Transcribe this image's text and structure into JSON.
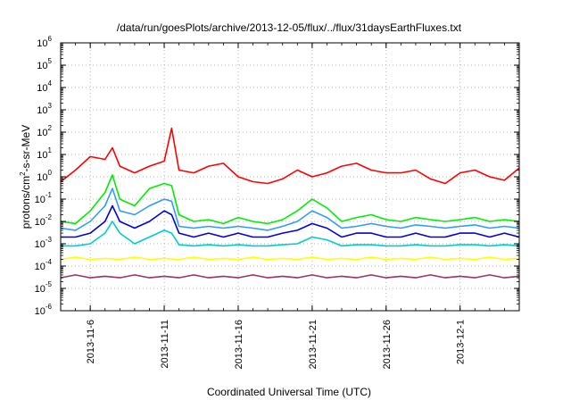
{
  "chart_data": {
    "type": "line",
    "title": "/data/run/goesPlots/archive/2013-12-05/flux/../flux/31daysEarthFluxes.txt",
    "xlabel": "Coordinated Universal Time (UTC)",
    "ylabel": {
      "base": "protons/cm",
      "sup": "2",
      "rest": "-s-sr-MeV"
    },
    "x_start": "2013-11-04",
    "x_end": "2013-12-05",
    "x_ticks": [
      "2013-11-6",
      "2013-11-11",
      "2013-11-16",
      "2013-11-21",
      "2013-11-26",
      "2013-12-1"
    ],
    "y_scale": "log",
    "ylim": [
      1e-06,
      1000000.0
    ],
    "y_ticks": [
      {
        "base": "10",
        "exp": "-6"
      },
      {
        "base": "10",
        "exp": "-5"
      },
      {
        "base": "10",
        "exp": "-4"
      },
      {
        "base": "10",
        "exp": "-3"
      },
      {
        "base": "10",
        "exp": "-2"
      },
      {
        "base": "10",
        "exp": "-1"
      },
      {
        "base": "10",
        "exp": "0"
      },
      {
        "base": "10",
        "exp": "1"
      },
      {
        "base": "10",
        "exp": "2"
      },
      {
        "base": "10",
        "exp": "3"
      },
      {
        "base": "10",
        "exp": "4"
      },
      {
        "base": "10",
        "exp": "5"
      },
      {
        "base": "10",
        "exp": "6"
      }
    ],
    "grid": true,
    "series": [
      {
        "color": "#ff0000",
        "x": [
          "2013-11-04",
          "2013-11-05",
          "2013-11-06",
          "2013-11-07",
          "2013-11-07T12:00",
          "2013-11-08",
          "2013-11-09",
          "2013-11-10",
          "2013-11-11",
          "2013-11-11T12:00",
          "2013-11-12",
          "2013-11-13",
          "2013-11-14",
          "2013-11-15",
          "2013-11-16",
          "2013-11-17",
          "2013-11-18",
          "2013-11-19",
          "2013-11-20",
          "2013-11-21",
          "2013-11-22",
          "2013-11-23",
          "2013-11-24",
          "2013-11-25",
          "2013-11-26",
          "2013-11-27",
          "2013-11-28",
          "2013-11-29",
          "2013-11-30",
          "2013-12-01",
          "2013-12-02",
          "2013-12-03",
          "2013-12-04",
          "2013-12-05"
        ],
        "y": [
          0.6,
          2,
          8,
          6,
          20,
          3,
          1.5,
          3,
          5,
          150,
          2,
          1.5,
          3,
          4,
          1,
          0.6,
          0.5,
          0.8,
          2,
          1,
          1.5,
          3,
          4,
          2,
          1.5,
          1.5,
          2,
          0.8,
          0.5,
          1.5,
          2,
          1,
          0.7,
          2.5
        ]
      },
      {
        "color": "#00ee00",
        "x": [
          "2013-11-04",
          "2013-11-05",
          "2013-11-06",
          "2013-11-07",
          "2013-11-07T12:00",
          "2013-11-08",
          "2013-11-09",
          "2013-11-10",
          "2013-11-11",
          "2013-11-11T12:00",
          "2013-11-12",
          "2013-11-13",
          "2013-11-14",
          "2013-11-15",
          "2013-11-16",
          "2013-11-17",
          "2013-11-18",
          "2013-11-19",
          "2013-11-20",
          "2013-11-21",
          "2013-11-22",
          "2013-11-23",
          "2013-11-24",
          "2013-11-25",
          "2013-11-26",
          "2013-11-27",
          "2013-11-28",
          "2013-11-29",
          "2013-11-30",
          "2013-12-01",
          "2013-12-02",
          "2013-12-03",
          "2013-12-04",
          "2013-12-05"
        ],
        "y": [
          0.01,
          0.008,
          0.03,
          0.2,
          1.2,
          0.1,
          0.05,
          0.3,
          0.5,
          0.4,
          0.02,
          0.01,
          0.012,
          0.008,
          0.015,
          0.01,
          0.008,
          0.012,
          0.03,
          0.1,
          0.04,
          0.01,
          0.015,
          0.02,
          0.012,
          0.01,
          0.015,
          0.012,
          0.01,
          0.012,
          0.015,
          0.01,
          0.012,
          0.01
        ]
      },
      {
        "color": "#3399ff",
        "x": [
          "2013-11-04",
          "2013-11-05",
          "2013-11-06",
          "2013-11-07",
          "2013-11-07T12:00",
          "2013-11-08",
          "2013-11-09",
          "2013-11-10",
          "2013-11-11",
          "2013-11-11T12:00",
          "2013-11-12",
          "2013-11-13",
          "2013-11-14",
          "2013-11-15",
          "2013-11-16",
          "2013-11-17",
          "2013-11-18",
          "2013-11-19",
          "2013-11-20",
          "2013-11-21",
          "2013-11-22",
          "2013-11-23",
          "2013-11-24",
          "2013-11-25",
          "2013-11-26",
          "2013-11-27",
          "2013-11-28",
          "2013-11-29",
          "2013-11-30",
          "2013-12-01",
          "2013-12-02",
          "2013-12-03",
          "2013-12-04",
          "2013-12-05"
        ],
        "y": [
          0.005,
          0.004,
          0.01,
          0.05,
          0.3,
          0.03,
          0.02,
          0.05,
          0.1,
          0.08,
          0.006,
          0.005,
          0.006,
          0.005,
          0.006,
          0.005,
          0.004,
          0.006,
          0.01,
          0.03,
          0.015,
          0.005,
          0.006,
          0.008,
          0.006,
          0.005,
          0.007,
          0.006,
          0.005,
          0.006,
          0.007,
          0.005,
          0.006,
          0.005
        ]
      },
      {
        "color": "#0000dd",
        "x": [
          "2013-11-04",
          "2013-11-05",
          "2013-11-06",
          "2013-11-07",
          "2013-11-07T12:00",
          "2013-11-08",
          "2013-11-09",
          "2013-11-10",
          "2013-11-11",
          "2013-11-11T12:00",
          "2013-11-12",
          "2013-11-13",
          "2013-11-14",
          "2013-11-15",
          "2013-11-16",
          "2013-11-17",
          "2013-11-18",
          "2013-11-19",
          "2013-11-20",
          "2013-11-21",
          "2013-11-22",
          "2013-11-23",
          "2013-11-24",
          "2013-11-25",
          "2013-11-26",
          "2013-11-27",
          "2013-11-28",
          "2013-11-29",
          "2013-11-30",
          "2013-12-01",
          "2013-12-02",
          "2013-12-03",
          "2013-12-04",
          "2013-12-05"
        ],
        "y": [
          0.002,
          0.002,
          0.003,
          0.01,
          0.05,
          0.01,
          0.005,
          0.01,
          0.03,
          0.02,
          0.003,
          0.002,
          0.003,
          0.002,
          0.003,
          0.002,
          0.002,
          0.003,
          0.004,
          0.008,
          0.005,
          0.002,
          0.003,
          0.003,
          0.002,
          0.002,
          0.003,
          0.002,
          0.002,
          0.003,
          0.003,
          0.002,
          0.003,
          0.002
        ]
      },
      {
        "color": "#00cccc",
        "x": [
          "2013-11-04",
          "2013-11-05",
          "2013-11-06",
          "2013-11-07",
          "2013-11-07T12:00",
          "2013-11-08",
          "2013-11-09",
          "2013-11-10",
          "2013-11-11",
          "2013-11-11T12:00",
          "2013-11-12",
          "2013-11-13",
          "2013-11-14",
          "2013-11-15",
          "2013-11-16",
          "2013-11-17",
          "2013-11-18",
          "2013-11-19",
          "2013-11-20",
          "2013-11-21",
          "2013-11-22",
          "2013-11-23",
          "2013-11-24",
          "2013-11-25",
          "2013-11-26",
          "2013-11-27",
          "2013-11-28",
          "2013-11-29",
          "2013-11-30",
          "2013-12-01",
          "2013-12-02",
          "2013-12-03",
          "2013-12-04",
          "2013-12-05"
        ],
        "y": [
          0.0008,
          0.0008,
          0.001,
          0.003,
          0.01,
          0.003,
          0.001,
          0.002,
          0.004,
          0.003,
          0.0009,
          0.0008,
          0.0009,
          0.0008,
          0.0009,
          0.0008,
          0.0008,
          0.0009,
          0.001,
          0.002,
          0.0015,
          0.0008,
          0.0009,
          0.0009,
          0.0008,
          0.0008,
          0.0009,
          0.0008,
          0.0008,
          0.0009,
          0.0009,
          0.0008,
          0.0009,
          0.0008
        ]
      },
      {
        "color": "#ffff00",
        "x": [
          "2013-11-04",
          "2013-11-05",
          "2013-11-06",
          "2013-11-07",
          "2013-11-08",
          "2013-11-09",
          "2013-11-10",
          "2013-11-11",
          "2013-11-12",
          "2013-11-13",
          "2013-11-14",
          "2013-11-15",
          "2013-11-16",
          "2013-11-17",
          "2013-11-18",
          "2013-11-19",
          "2013-11-20",
          "2013-11-21",
          "2013-11-22",
          "2013-11-23",
          "2013-11-24",
          "2013-11-25",
          "2013-11-26",
          "2013-11-27",
          "2013-11-28",
          "2013-11-29",
          "2013-11-30",
          "2013-12-01",
          "2013-12-02",
          "2013-12-03",
          "2013-12-04",
          "2013-12-05"
        ],
        "y": [
          0.0002,
          0.00025,
          0.0002,
          0.00022,
          0.0002,
          0.00025,
          0.0002,
          0.00022,
          0.0002,
          0.00025,
          0.0002,
          0.00022,
          0.0002,
          0.00025,
          0.0002,
          0.00022,
          0.0002,
          0.00025,
          0.0002,
          0.00022,
          0.0002,
          0.00025,
          0.0002,
          0.00022,
          0.0002,
          0.00025,
          0.0002,
          0.00022,
          0.0002,
          0.00025,
          0.0002,
          0.00022
        ]
      },
      {
        "color": "#993366",
        "x": [
          "2013-11-04",
          "2013-11-05",
          "2013-11-06",
          "2013-11-07",
          "2013-11-08",
          "2013-11-09",
          "2013-11-10",
          "2013-11-11",
          "2013-11-12",
          "2013-11-13",
          "2013-11-14",
          "2013-11-15",
          "2013-11-16",
          "2013-11-17",
          "2013-11-18",
          "2013-11-19",
          "2013-11-20",
          "2013-11-21",
          "2013-11-22",
          "2013-11-23",
          "2013-11-24",
          "2013-11-25",
          "2013-11-26",
          "2013-11-27",
          "2013-11-28",
          "2013-11-29",
          "2013-11-30",
          "2013-12-01",
          "2013-12-02",
          "2013-12-03",
          "2013-12-04",
          "2013-12-05"
        ],
        "y": [
          3e-05,
          4e-05,
          3e-05,
          3.5e-05,
          3e-05,
          4e-05,
          3e-05,
          3.5e-05,
          3e-05,
          4e-05,
          3e-05,
          3.5e-05,
          3e-05,
          4e-05,
          3e-05,
          3.5e-05,
          3e-05,
          4e-05,
          3e-05,
          3.5e-05,
          3e-05,
          4e-05,
          3e-05,
          3.5e-05,
          3e-05,
          4e-05,
          3e-05,
          3.5e-05,
          3e-05,
          4e-05,
          3e-05,
          3.5e-05
        ]
      }
    ]
  }
}
